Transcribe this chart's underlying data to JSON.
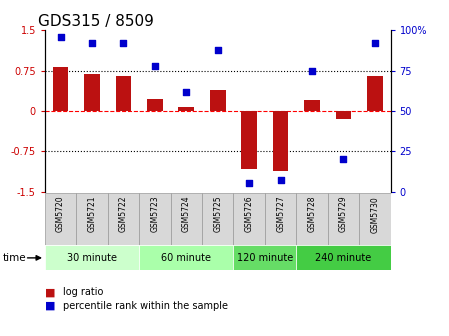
{
  "title": "GDS315 / 8509",
  "samples": [
    "GSM5720",
    "GSM5721",
    "GSM5722",
    "GSM5723",
    "GSM5724",
    "GSM5725",
    "GSM5726",
    "GSM5727",
    "GSM5728",
    "GSM5729",
    "GSM5730"
  ],
  "log_ratio": [
    0.82,
    0.68,
    0.65,
    0.22,
    0.07,
    0.38,
    -1.08,
    -1.12,
    0.2,
    -0.15,
    0.65
  ],
  "percentile": [
    96,
    92,
    92,
    78,
    62,
    88,
    5,
    7,
    75,
    20,
    92
  ],
  "groups": [
    {
      "label": "30 minute",
      "start": 0,
      "end": 2,
      "color": "#ccffcc"
    },
    {
      "label": "60 minute",
      "start": 3,
      "end": 5,
      "color": "#aaffaa"
    },
    {
      "label": "120 minute",
      "start": 6,
      "end": 7,
      "color": "#66dd66"
    },
    {
      "label": "240 minute",
      "start": 8,
      "end": 10,
      "color": "#44cc44"
    }
  ],
  "bar_color": "#bb1111",
  "dot_color": "#0000cc",
  "ylim": [
    -1.5,
    1.5
  ],
  "bar_width": 0.5,
  "title_fontsize": 11,
  "tick_fontsize": 7,
  "sample_fontsize": 5.5
}
